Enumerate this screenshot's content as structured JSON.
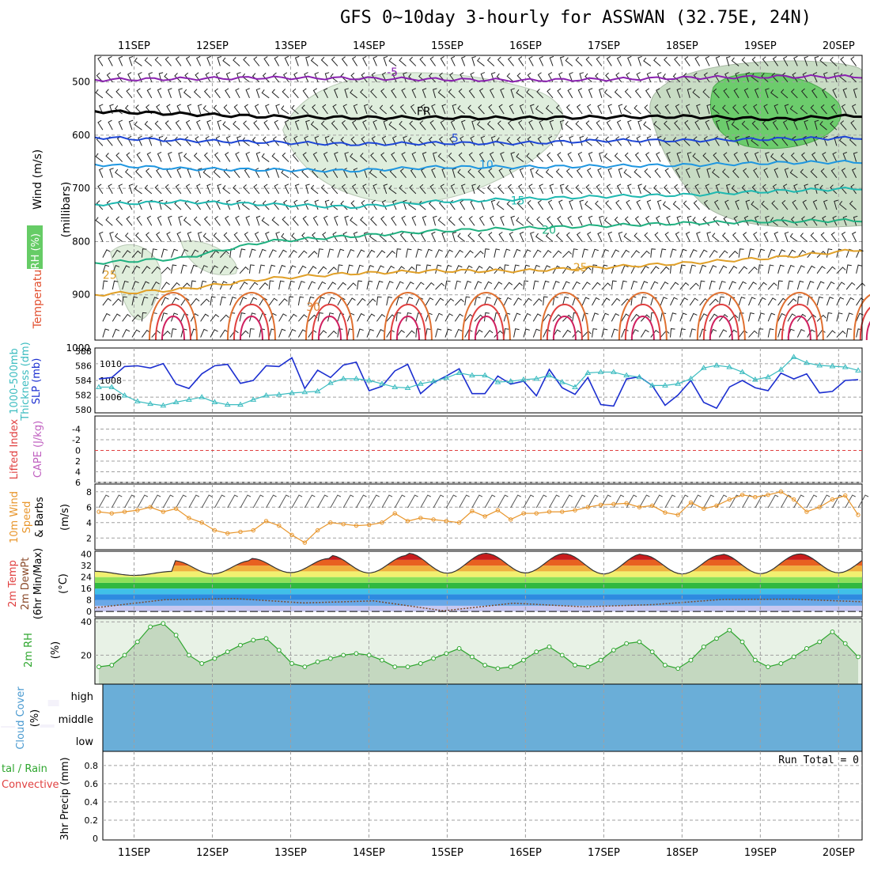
{
  "title": "GFS 0~10day 3-hourly for ASSWAN (32.75E, 24N)",
  "date_labels": [
    "11SEP",
    "12SEP",
    "13SEP",
    "14SEP",
    "15SEP",
    "16SEP",
    "17SEP",
    "18SEP",
    "19SEP",
    "20SEP"
  ],
  "panel_labels": {
    "upper": {
      "wind": "Wind (m/s)",
      "temperature": "Temperature (°C)",
      "rh": "RH (%)",
      "units": "(millibars)"
    },
    "thickness": {
      "a": "1000-500mb",
      "b": "Thickness (dm)",
      "c": "SLP (mb)"
    },
    "lifted": {
      "a": "Lifted Index",
      "b": "CAPE (J/kg)"
    },
    "wind10": {
      "a": "10m Wind",
      "b": "Speed",
      "c": "& Barbs",
      "unit": "(m/s)"
    },
    "temp2m": {
      "a": "2m Temp",
      "b": "2m DewPt",
      "c": "(6hr Min/Max)",
      "unit": "(°C)"
    },
    "rh2m": {
      "a": "2m RH",
      "unit": "(%)"
    },
    "cloud": {
      "a": "Cloud Cover",
      "unit": "(%)",
      "high": "high",
      "middle": "middle",
      "low": "low"
    },
    "precip": {
      "a": "tal / Rain",
      "b": "Convective",
      "c": "3hr Precip (mm)",
      "run_total": "Run Total = 0"
    }
  },
  "chart_data": [
    {
      "type": "contour",
      "name": "upper-air",
      "pressure_levels_mb": [
        500,
        600,
        700,
        800,
        900,
        1000
      ],
      "temperature_contours_label": [
        "-5",
        "FR",
        "5",
        "10",
        "15",
        "20",
        "25",
        "30"
      ],
      "rh_labels": [
        "10",
        "30"
      ],
      "contour_levels_C": [
        -5,
        0,
        5,
        10,
        15,
        20,
        25,
        30
      ],
      "isotherm_pressure_mb": {
        "m5": [
          496,
          494,
          492,
          493,
          495,
          497,
          495,
          492,
          490,
          490
        ],
        "fr": [
          555,
          560,
          565,
          567,
          567,
          568,
          566,
          565,
          570,
          563
        ],
        "p5": [
          604,
          610,
          613,
          617,
          615,
          615,
          610,
          610,
          607,
          605
        ],
        "p10": [
          655,
          663,
          665,
          667,
          660,
          660,
          658,
          656,
          652,
          650
        ],
        "p15": [
          730,
          725,
          730,
          735,
          725,
          720,
          715,
          712,
          705,
          700
        ],
        "p20": [
          840,
          832,
          800,
          790,
          780,
          775,
          770,
          765,
          762,
          760
        ],
        "p25": [
          900,
          890,
          870,
          860,
          855,
          855,
          848,
          840,
          830,
          815
        ]
      }
    },
    {
      "type": "line",
      "name": "thickness-slp",
      "thickness_ticks": [
        580,
        582,
        584,
        586,
        588
      ],
      "slp_ticks": [
        1006,
        1008,
        1010
      ],
      "series": [
        {
          "name": "1000-500mb Thickness (dm)",
          "color": "#1c2fd0",
          "values": [
            584.2,
            584.4,
            585.9,
            586.0,
            585.7,
            586.3,
            583.5,
            582.9,
            584.9,
            586.0,
            586.2,
            583.6,
            584.0,
            586.0,
            585.9,
            587.1,
            582.9,
            585.4,
            584.4,
            586.1,
            586.5,
            582.6,
            583.2,
            585.3,
            586.2,
            582.2,
            583.7,
            584.6,
            585.6,
            582.2,
            582.2,
            584.6,
            583.5,
            583.9,
            581.9,
            585.5,
            583.0,
            582.1,
            584.4,
            580.7,
            580.5,
            584.2,
            584.5,
            583.3,
            580.6,
            582.0,
            584.0,
            581.0,
            580.2,
            583.1,
            584.0,
            583.0,
            582.6,
            585.0,
            584.2,
            584.9,
            582.3,
            582.5,
            584.0,
            584.1
          ]
        },
        {
          "name": "SLP (mb)",
          "color": "#3cbcc0",
          "values": [
            1007.2,
            1007.2,
            1006.2,
            1005.5,
            1005.2,
            1005.0,
            1005.4,
            1005.7,
            1006.0,
            1005.4,
            1005.1,
            1005.1,
            1005.7,
            1006.2,
            1006.3,
            1006.5,
            1006.6,
            1006.7,
            1007.7,
            1008.2,
            1008.2,
            1008.0,
            1007.6,
            1007.2,
            1007.1,
            1007.6,
            1007.9,
            1008.3,
            1008.9,
            1008.6,
            1008.6,
            1007.8,
            1007.9,
            1008.1,
            1008.2,
            1008.6,
            1007.8,
            1007.2,
            1008.9,
            1009.0,
            1009.0,
            1008.6,
            1008.4,
            1007.4,
            1007.4,
            1007.6,
            1008.2,
            1009.5,
            1009.8,
            1009.6,
            1009.0,
            1008.1,
            1008.4,
            1009.3,
            1010.8,
            1010.1,
            1009.8,
            1009.7,
            1009.6,
            1009.2
          ]
        }
      ]
    },
    {
      "type": "line",
      "name": "lifted-index-cape",
      "li_ticks": [
        -4,
        -2,
        0,
        2,
        4,
        6
      ],
      "cape_bumps_day": [
        2.8,
        3.8,
        7.8,
        8.8
      ]
    },
    {
      "type": "line",
      "name": "10m-wind",
      "y_ticks": [
        2,
        4,
        6,
        8
      ],
      "series": [
        {
          "name": "Speed (m/s)",
          "color": "#e8962c",
          "values": [
            5.4,
            5.2,
            5.4,
            5.6,
            6.0,
            5.4,
            5.8,
            4.6,
            4.0,
            3.0,
            2.6,
            2.8,
            3.0,
            4.2,
            3.6,
            2.4,
            1.4,
            3.0,
            4.0,
            3.8,
            3.6,
            3.7,
            4.0,
            5.2,
            4.2,
            4.6,
            4.4,
            4.2,
            4.0,
            5.5,
            4.8,
            5.6,
            4.4,
            5.2,
            5.2,
            5.4,
            5.4,
            5.6,
            6.0,
            6.3,
            6.4,
            6.5,
            6.0,
            6.2,
            5.3,
            5.0,
            6.6,
            5.8,
            6.2,
            7.0,
            7.6,
            7.3,
            7.6,
            8.0,
            7.0,
            5.4,
            6.0,
            7.0,
            7.5,
            5.0
          ]
        }
      ]
    },
    {
      "type": "area",
      "name": "2m-temp",
      "y_ticks": [
        0,
        8,
        16,
        24,
        32,
        40
      ],
      "temp_max_series": [
        28.0,
        35.5,
        37.0,
        39.2,
        40.6,
        40.4,
        40.2,
        39.4,
        40.0,
        40.2
      ],
      "temp_min_series": [
        25.2,
        26.2,
        27.1,
        26.9,
        26.7,
        26.9,
        26.2,
        26.2,
        26.4,
        27.0
      ],
      "dewpoint_series": [
        2.6,
        8.2,
        9.0,
        6.0,
        7.4,
        0.5,
        5.8,
        3.3,
        4.8,
        8.4,
        8.6,
        6.8
      ]
    },
    {
      "type": "area",
      "name": "2m-rh",
      "y_ticks": [
        20,
        40
      ],
      "series": [
        {
          "name": "2m RH (%)",
          "color": "#2ea62e",
          "values": [
            13,
            14,
            20,
            28,
            37,
            39,
            32,
            20,
            15,
            18,
            22,
            26,
            29,
            30,
            23,
            15,
            13,
            16,
            18,
            20,
            21,
            20,
            17,
            13,
            13,
            15,
            18,
            21,
            24,
            19,
            14,
            12,
            13,
            17,
            22,
            25,
            20,
            14,
            13,
            17,
            23,
            27,
            28,
            22,
            14,
            12,
            17,
            25,
            30,
            35,
            28,
            17,
            13,
            15,
            19,
            24,
            28,
            34,
            27,
            19
          ]
        }
      ]
    },
    {
      "type": "bar",
      "name": "cloud-cover",
      "levels": [
        "high",
        "middle",
        "low"
      ],
      "high_cover_day": [
        1.9,
        2.3,
        5.2,
        5.5,
        5.7,
        6.2,
        7.2,
        7.5,
        8.0,
        8.4,
        8.9,
        9.9
      ],
      "mid_cover_day": [
        8.4,
        8.6,
        9.1,
        9.3,
        9.8
      ]
    },
    {
      "type": "bar",
      "name": "3hr-precip",
      "y_ticks": [
        0,
        0.2,
        0.4,
        0.6,
        0.8
      ],
      "values": []
    }
  ]
}
